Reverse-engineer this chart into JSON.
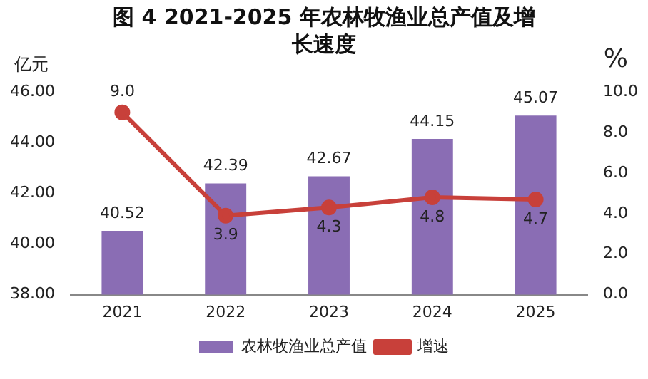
{
  "chart_data": {
    "type": "bar",
    "title": "图 4   2021-2025 年农林牧渔业总产值及增长速度",
    "ylabel": "亿元",
    "y2label": "%",
    "categories": [
      "2021",
      "2022",
      "2023",
      "2024",
      "2025"
    ],
    "series": [
      {
        "name": "农林牧渔业总产值",
        "color": "#8a6db4",
        "values": [
          40.52,
          42.39,
          42.67,
          44.15,
          45.07
        ],
        "value_labels": [
          "40.52",
          "42.39",
          "42.67",
          "44.15",
          "45.07"
        ]
      },
      {
        "name": "增速",
        "type": "line",
        "axis": "y2",
        "color": "#c8403a",
        "values": [
          9.0,
          3.9,
          4.3,
          4.8,
          4.7
        ],
        "value_labels": [
          "9.0",
          "3.9",
          "4.3",
          "4.8",
          "4.7"
        ]
      }
    ],
    "ylim": [
      38,
      46
    ],
    "yticks": [
      {
        "value": 38,
        "label": "38.00"
      },
      {
        "value": 40,
        "label": "40.00"
      },
      {
        "value": 42,
        "label": "42.00"
      },
      {
        "value": 44,
        "label": "44.00"
      },
      {
        "value": 46,
        "label": "46.00"
      }
    ],
    "y2lim": [
      0,
      10
    ],
    "y2ticks": [
      {
        "value": 0,
        "label": "0.0"
      },
      {
        "value": 2,
        "label": "2.0"
      },
      {
        "value": 4,
        "label": "4.0"
      },
      {
        "value": 6,
        "label": "6.0"
      },
      {
        "value": 8,
        "label": "8.0"
      },
      {
        "value": 10,
        "label": "10.0"
      }
    ],
    "marker": "circle",
    "legend": "bottom",
    "grid": false
  }
}
